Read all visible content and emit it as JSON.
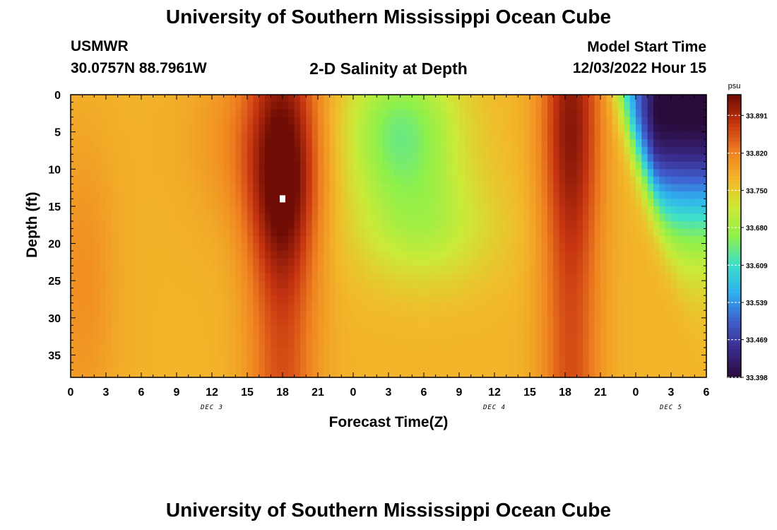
{
  "page": {
    "title": "University of Southern Mississippi Ocean Cube",
    "footer_title": "University of Southern Mississippi Ocean Cube",
    "station_id": "USMWR",
    "station_coords": "30.0757N  88.7961W",
    "plot_title": "2-D Salinity at Depth",
    "model_start_label": "Model Start Time",
    "model_start_value": "12/03/2022 Hour 15"
  },
  "chart_data": {
    "type": "heatmap",
    "title": "2-D Salinity at Depth",
    "xlabel": "Forecast Time(Z)",
    "ylabel": "Depth (ft)",
    "x_tick_labels": [
      "0",
      "3",
      "6",
      "9",
      "12",
      "15",
      "18",
      "21",
      "0",
      "3",
      "6",
      "9",
      "12",
      "15",
      "18",
      "21",
      "0",
      "3",
      "6"
    ],
    "x_range_hours_from_dec3_00z": [
      0,
      54
    ],
    "day_labels": [
      {
        "label": "DEC 3",
        "at_hour": 12
      },
      {
        "label": "DEC 4",
        "at_hour": 36
      },
      {
        "label": "DEC 5",
        "at_hour": 51
      }
    ],
    "y_ticks": [
      0,
      5,
      10,
      15,
      20,
      25,
      30,
      35
    ],
    "ylim": [
      0,
      38
    ],
    "y_inverted": true,
    "colorbar": {
      "unit": "psu",
      "ticks": [
        33.891,
        33.82,
        33.75,
        33.68,
        33.609,
        33.539,
        33.469,
        33.398
      ],
      "range": [
        33.398,
        33.93
      ],
      "colors": [
        "#2a0a3a",
        "#3a2a8a",
        "#3f5fcf",
        "#2fb0f0",
        "#3ee0c8",
        "#8ef04a",
        "#ccea38",
        "#f2b92a",
        "#f08020",
        "#c63410",
        "#6e0c04"
      ]
    },
    "features": [
      {
        "name": "high salinity core (dec 3)",
        "center_hour": 18,
        "center_depth_ft": 14,
        "value": 33.92
      },
      {
        "name": "low salinity lens (dec 4)",
        "center_hour": 28,
        "center_depth_ft": 5,
        "value": 33.64
      },
      {
        "name": "high salinity core (dec 4)",
        "center_hour": 42.5,
        "center_depth_ft": 5,
        "value": 33.9
      },
      {
        "name": "fresh surface layer (dec 5)",
        "center_hour": 54,
        "center_depth_ft": 3,
        "value": 33.4
      }
    ],
    "marker": {
      "hour": 18,
      "depth_ft": 14,
      "color": "#ffffff"
    }
  }
}
